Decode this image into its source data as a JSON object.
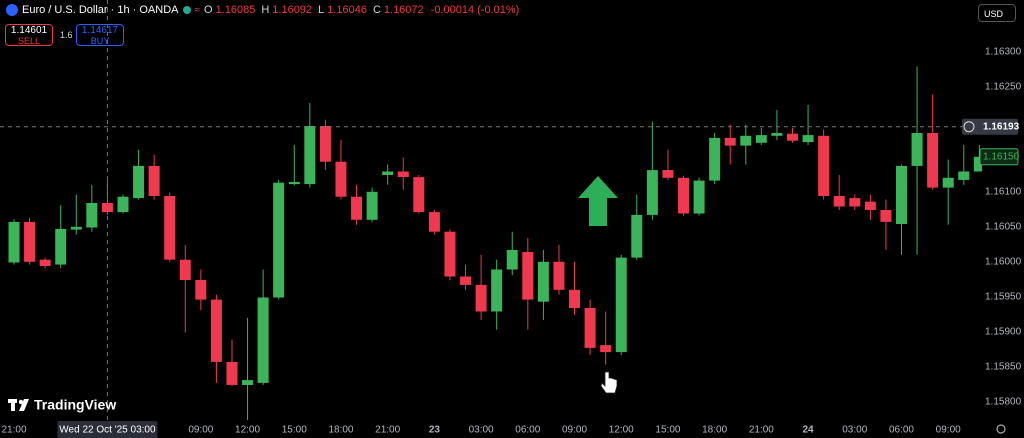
{
  "toolbar": {
    "symbol": "Euro / U.S. Dollar · 1h · OANDA",
    "ohlc": [
      {
        "label": "O",
        "value": "1.16085"
      },
      {
        "label": "H",
        "value": "1.16092"
      },
      {
        "label": "L",
        "value": "1.16046"
      },
      {
        "label": "C",
        "value": "1.16072"
      }
    ],
    "change": "-0.00014 (-0.01%)",
    "sell": {
      "price": "1.14601",
      "label": "SELL"
    },
    "spread": "1.6",
    "buy": {
      "price": "1.14617",
      "label": "BUY"
    },
    "currency": "USD",
    "logo": "TradingView"
  },
  "chart_data": {
    "type": "candlestick",
    "categories": [
      "21:00",
      null,
      null,
      null,
      null,
      null,
      "Wed 22 Oct '25  03:00",
      null,
      null,
      null,
      null,
      null,
      "09:00",
      null,
      null,
      "12:00",
      null,
      null,
      "15:00",
      null,
      null,
      "18:00",
      null,
      null,
      "21:00",
      null,
      null,
      "23",
      null,
      null,
      "03:00",
      null,
      null,
      "06:00",
      null,
      null,
      "09:00",
      null,
      null,
      "12:00",
      null,
      null,
      "15:00",
      null,
      null,
      "18:00",
      null,
      null,
      "21:00",
      null,
      null,
      "24",
      null,
      null,
      "03:00",
      null,
      null,
      "06:00",
      null,
      null,
      "09:00",
      null,
      null
    ],
    "open": [
      1.15999,
      1.16057,
      1.16003,
      1.15996,
      1.16046,
      1.16049,
      1.16084,
      1.16071,
      1.16091,
      1.16137,
      1.16094,
      1.16003,
      1.15974,
      1.15946,
      1.15857,
      1.15824,
      1.15827,
      1.15949,
      1.16111,
      1.16111,
      1.16194,
      1.16143,
      1.16093,
      1.1606,
      1.16124,
      1.16129,
      1.16121,
      1.16071,
      1.16043,
      1.15979,
      1.15967,
      1.15929,
      1.15989,
      1.16014,
      1.15943,
      1.16,
      1.1596,
      1.15934,
      1.15881,
      1.15871,
      1.16006,
      1.16067,
      1.16131,
      1.1612,
      1.16069,
      1.16116,
      1.16177,
      1.16166,
      1.1617,
      1.1618,
      1.16183,
      1.16171,
      1.1618,
      1.16094,
      1.16091,
      1.16086,
      1.16074,
      1.16054,
      1.16137,
      1.16184,
      1.16106,
      1.16117,
      1.16129
    ],
    "high": [
      1.16061,
      1.16063,
      1.16006,
      1.16081,
      1.16096,
      1.1611,
      1.16117,
      1.16096,
      1.1616,
      1.16153,
      1.16099,
      1.16024,
      1.15989,
      1.15953,
      1.15889,
      1.1592,
      1.15989,
      1.16117,
      1.16167,
      1.16227,
      1.16203,
      1.16174,
      1.1611,
      1.16106,
      1.16139,
      1.16149,
      1.16124,
      1.16074,
      1.16046,
      1.15996,
      1.1601,
      1.16003,
      1.16043,
      1.16034,
      1.16017,
      1.16024,
      1.16,
      1.15946,
      1.15929,
      1.1601,
      1.16096,
      1.162,
      1.1616,
      1.16123,
      1.1612,
      1.16184,
      1.16196,
      1.16196,
      1.16191,
      1.16217,
      1.16191,
      1.16224,
      1.16189,
      1.16124,
      1.16096,
      1.16096,
      1.16089,
      1.16139,
      1.16279,
      1.16239,
      1.16146,
      1.16167,
      1.16167
    ],
    "low": [
      1.15996,
      1.15996,
      1.15991,
      1.15991,
      1.16039,
      1.16043,
      1.16067,
      1.16069,
      1.16089,
      1.16089,
      1.16,
      1.15899,
      1.15931,
      1.15827,
      1.15823,
      1.15774,
      1.15824,
      1.15946,
      1.16109,
      1.16106,
      1.16131,
      1.16089,
      1.16053,
      1.16057,
      1.1611,
      1.16103,
      1.16069,
      1.16039,
      1.15974,
      1.1596,
      1.15917,
      1.15903,
      1.15981,
      1.15903,
      1.15917,
      1.15953,
      1.15924,
      1.15867,
      1.15853,
      1.15867,
      1.16003,
      1.1606,
      1.16117,
      1.16066,
      1.16066,
      1.16111,
      1.16139,
      1.16139,
      1.16167,
      1.16174,
      1.1617,
      1.16167,
      1.16089,
      1.16074,
      1.16074,
      1.1606,
      1.16017,
      1.1601,
      1.1601,
      1.16103,
      1.16053,
      1.1611,
      1.16129
    ],
    "close": [
      1.16057,
      1.16,
      1.15994,
      1.16047,
      1.1605,
      1.16084,
      1.16071,
      1.16093,
      1.16137,
      1.16094,
      1.16003,
      1.15974,
      1.15946,
      1.15857,
      1.15824,
      1.15831,
      1.15949,
      1.16113,
      1.16114,
      1.16194,
      1.16143,
      1.16093,
      1.1606,
      1.161,
      1.16129,
      1.16121,
      1.16071,
      1.16043,
      1.15979,
      1.15967,
      1.15929,
      1.15989,
      1.16017,
      1.15946,
      1.16,
      1.1596,
      1.15934,
      1.15877,
      1.15871,
      1.16006,
      1.16067,
      1.16131,
      1.1612,
      1.16069,
      1.16116,
      1.16177,
      1.16166,
      1.1618,
      1.16181,
      1.16184,
      1.16173,
      1.16181,
      1.16094,
      1.16079,
      1.16079,
      1.16074,
      1.16057,
      1.16137,
      1.16184,
      1.16106,
      1.1612,
      1.16129,
      1.1615
    ],
    "up_color": "#3cb55a",
    "down_color": "#f0394f",
    "ylim": [
      1.15774,
      1.16374
    ],
    "yticks": [
      {
        "value": 1.163,
        "label": "1.16300"
      },
      {
        "value": 1.1625,
        "label": "1.16250"
      },
      {
        "value": 1.161,
        "label": "1.16100"
      },
      {
        "value": 1.1605,
        "label": "1.16050"
      },
      {
        "value": 1.16,
        "label": "1.16000"
      },
      {
        "value": 1.1595,
        "label": "1.15950"
      },
      {
        "value": 1.159,
        "label": "1.15900"
      },
      {
        "value": 1.1585,
        "label": "1.15850"
      },
      {
        "value": 1.158,
        "label": "1.15800"
      }
    ],
    "crosshair_price": 1.16193,
    "last_price": {
      "value": 1.1615,
      "label": "1.16150"
    }
  }
}
